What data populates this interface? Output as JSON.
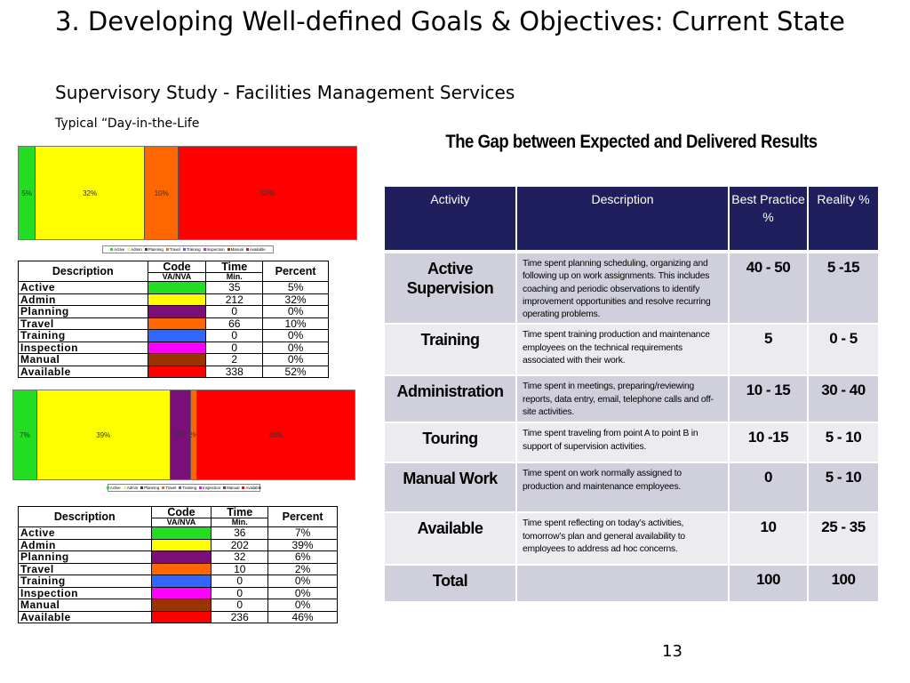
{
  "slide": {
    "title": "3. Developing Well-defined Goals & Objectives: Current State",
    "subtitle": "Supervisory Study - Facilities Management Services",
    "subsubtitle": "Typical “Day-in-the-Life",
    "page_number": "13"
  },
  "colors": {
    "active": "#22dd22",
    "admin": "#ffff00",
    "planning": "#7a0f7a",
    "travel": "#ff6600",
    "training": "#3366ff",
    "inspection": "#ff00ff",
    "manual": "#993300",
    "available": "#ff0000",
    "header_navy": "#1f1f5e"
  },
  "legend_labels": [
    "Active",
    "Admin",
    "Planning",
    "Travel",
    "Training",
    "Inspection",
    "Manual",
    "Available"
  ],
  "chart_data": [
    {
      "type": "bar",
      "stacked": true,
      "orientation": "horizontal",
      "categories": [
        "Active",
        "Admin",
        "Planning",
        "Travel",
        "Training",
        "Inspection",
        "Manual",
        "Available"
      ],
      "values": [
        5,
        32,
        0,
        10,
        0,
        0,
        0,
        52
      ],
      "labels": [
        "5%",
        "32%",
        "",
        "10%",
        "",
        "",
        "",
        "52%"
      ]
    },
    {
      "type": "bar",
      "stacked": true,
      "orientation": "horizontal",
      "categories": [
        "Active",
        "Admin",
        "Planning",
        "Travel",
        "Training",
        "Inspection",
        "Manual",
        "Available"
      ],
      "values": [
        7,
        39,
        6,
        2,
        0,
        0,
        0,
        46
      ],
      "labels": [
        "7%",
        "39%",
        "6%",
        "2%",
        "",
        "",
        "",
        "46%"
      ]
    }
  ],
  "table1": {
    "headers": {
      "description": "Description",
      "code": "Code",
      "code_sub": "VA/NVA",
      "time": "Time",
      "time_sub": "Min.",
      "percent": "Percent"
    },
    "rows": [
      {
        "label": "Active",
        "color_key": "active",
        "time": "35",
        "percent": "5%"
      },
      {
        "label": "Admin",
        "color_key": "admin",
        "time": "212",
        "percent": "32%"
      },
      {
        "label": "Planning",
        "color_key": "planning",
        "time": "0",
        "percent": "0%"
      },
      {
        "label": "Travel",
        "color_key": "travel",
        "time": "66",
        "percent": "10%"
      },
      {
        "label": "Training",
        "color_key": "training",
        "time": "0",
        "percent": "0%"
      },
      {
        "label": "Inspection",
        "color_key": "inspection",
        "time": "0",
        "percent": "0%"
      },
      {
        "label": "Manual",
        "color_key": "manual",
        "time": "2",
        "percent": "0%"
      },
      {
        "label": "Available",
        "color_key": "available",
        "time": "338",
        "percent": "52%"
      }
    ]
  },
  "table2": {
    "headers": {
      "description": "Description",
      "code": "Code",
      "code_sub": "VA/NVA",
      "time": "Time",
      "time_sub": "Min.",
      "percent": "Percent"
    },
    "rows": [
      {
        "label": "Active",
        "color_key": "active",
        "time": "36",
        "percent": "7%"
      },
      {
        "label": "Admin",
        "color_key": "admin",
        "time": "202",
        "percent": "39%"
      },
      {
        "label": "Planning",
        "color_key": "planning",
        "time": "32",
        "percent": "6%"
      },
      {
        "label": "Travel",
        "color_key": "travel",
        "time": "10",
        "percent": "2%"
      },
      {
        "label": "Training",
        "color_key": "training",
        "time": "0",
        "percent": "0%"
      },
      {
        "label": "Inspection",
        "color_key": "inspection",
        "time": "0",
        "percent": "0%"
      },
      {
        "label": "Manual",
        "color_key": "manual",
        "time": "0",
        "percent": "0%"
      },
      {
        "label": "Available",
        "color_key": "available",
        "time": "236",
        "percent": "46%"
      }
    ]
  },
  "gap_table": {
    "heading": "The Gap between Expected and Delivered Results",
    "headers": {
      "activity": "Activity",
      "description": "Description",
      "best": "Best Practice %",
      "reality": "Reality %"
    },
    "rows": [
      {
        "activity": "Active Supervision",
        "description": "Time spent planning scheduling, organizing and following up on work assignments. This includes coaching and periodic observations to identify improvement opportunities and resolve recurring operating problems.",
        "best": "40 - 50",
        "reality": "5 -15"
      },
      {
        "activity": "Training",
        "description": "Time spent training production and maintenance employees on the technical requirements associated with their work.",
        "best": "5",
        "reality": "0 - 5"
      },
      {
        "activity": "Administration",
        "description": "Time spent in meetings, preparing/reviewing reports, data entry, email, telephone calls and off-site activities.",
        "best": "10 - 15",
        "reality": "30 - 40"
      },
      {
        "activity": "Touring",
        "description": "Time spent traveling from point A to point B in support of supervision activities.",
        "best": "10 -15",
        "reality": "5 - 10"
      },
      {
        "activity": "Manual Work",
        "description": "Time spent on work normally assigned to production and maintenance employees.",
        "best": "0",
        "reality": "5 - 10"
      },
      {
        "activity": "Available",
        "description": "Time spent reflecting on today’s activities, tomorrow’s plan and general availability to employees to address ad hoc concerns.",
        "best": "10",
        "reality": "25 - 35"
      },
      {
        "activity": "Total",
        "description": "",
        "best": "100",
        "reality": "100"
      }
    ]
  }
}
